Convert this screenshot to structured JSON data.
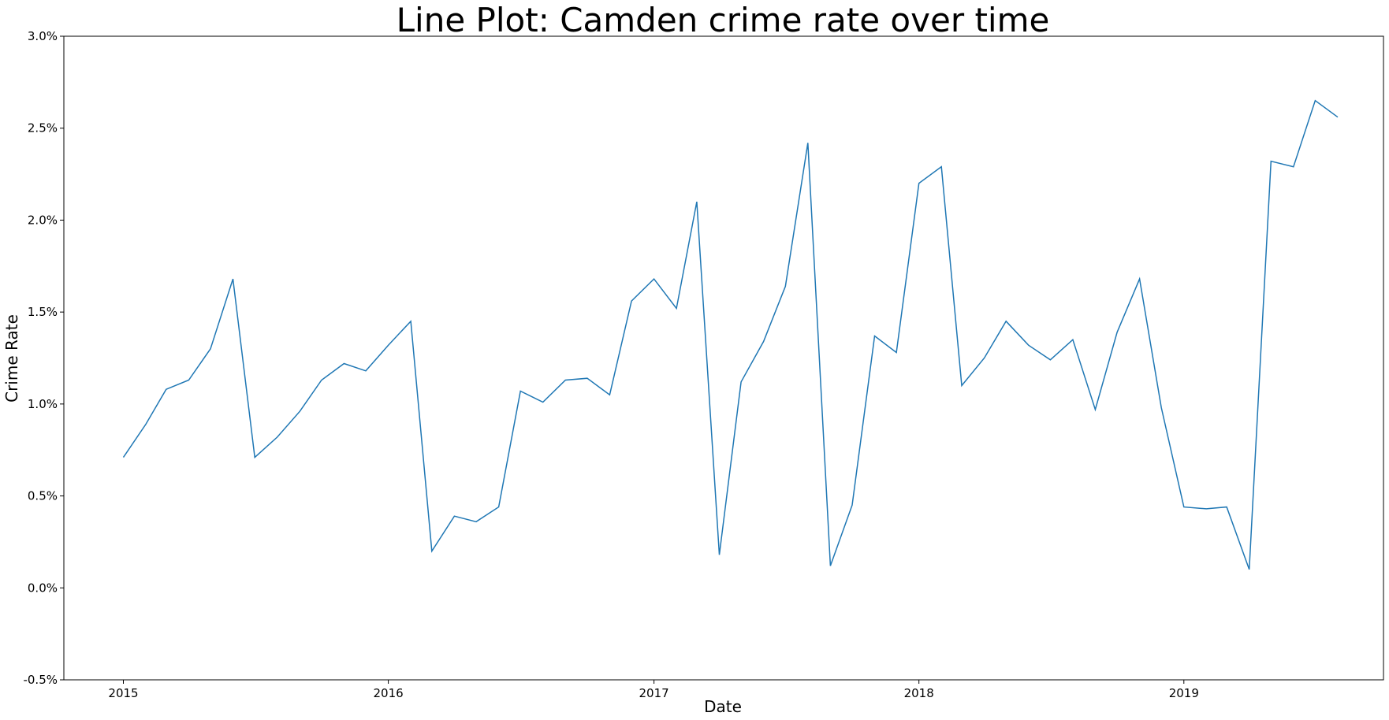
{
  "chart_data": {
    "type": "line",
    "title": "Line Plot: Camden crime rate over time",
    "xlabel": "Date",
    "ylabel": "Crime Rate",
    "x_axis_type": "date",
    "xlim": [
      "2014-10-11",
      "2019-10-03"
    ],
    "ylim": [
      -0.5,
      3.0
    ],
    "y_unit": "%",
    "x_ticks": [
      {
        "value": "2015-01-01",
        "label": "2015"
      },
      {
        "value": "2016-01-01",
        "label": "2016"
      },
      {
        "value": "2017-01-01",
        "label": "2017"
      },
      {
        "value": "2018-01-01",
        "label": "2018"
      },
      {
        "value": "2019-01-01",
        "label": "2019"
      }
    ],
    "y_ticks": [
      {
        "value": -0.5,
        "label": "-0.5%"
      },
      {
        "value": 0.0,
        "label": "0.0%"
      },
      {
        "value": 0.5,
        "label": "0.5%"
      },
      {
        "value": 1.0,
        "label": "1.0%"
      },
      {
        "value": 1.5,
        "label": "1.5%"
      },
      {
        "value": 2.0,
        "label": "2.0%"
      },
      {
        "value": 2.5,
        "label": "2.5%"
      },
      {
        "value": 3.0,
        "label": "3.0%"
      }
    ],
    "grid": false,
    "line_color": "#1f77b4",
    "series": [
      {
        "x": [
          "2015-01-01",
          "2015-02-01",
          "2015-03-01",
          "2015-04-01",
          "2015-05-01",
          "2015-06-01",
          "2015-07-01",
          "2015-08-01",
          "2015-09-01",
          "2015-10-01",
          "2015-11-01",
          "2015-12-01",
          "2016-01-01",
          "2016-02-01",
          "2016-03-01",
          "2016-04-01",
          "2016-05-01",
          "2016-06-01",
          "2016-07-01",
          "2016-08-01",
          "2016-09-01",
          "2016-10-01",
          "2016-11-01",
          "2016-12-01",
          "2017-01-01",
          "2017-02-01",
          "2017-03-01",
          "2017-04-01",
          "2017-05-01",
          "2017-06-01",
          "2017-07-01",
          "2017-08-01",
          "2017-09-01",
          "2017-10-01",
          "2017-11-01",
          "2017-12-01",
          "2018-01-01",
          "2018-02-01",
          "2018-03-01",
          "2018-04-01",
          "2018-05-01",
          "2018-06-01",
          "2018-07-01",
          "2018-08-01",
          "2018-09-01",
          "2018-10-01",
          "2018-11-01",
          "2018-12-01",
          "2019-01-01",
          "2019-02-01",
          "2019-03-01",
          "2019-04-01",
          "2019-05-01",
          "2019-06-01",
          "2019-07-01",
          "2019-08-01"
        ],
        "values": [
          0.71,
          0.89,
          1.08,
          1.13,
          1.3,
          1.68,
          0.71,
          0.82,
          0.96,
          1.13,
          1.22,
          1.18,
          1.32,
          1.45,
          0.2,
          0.39,
          0.36,
          0.44,
          1.07,
          1.01,
          1.13,
          1.14,
          1.05,
          1.56,
          1.68,
          1.52,
          2.1,
          0.18,
          1.12,
          1.34,
          1.64,
          2.42,
          0.12,
          0.45,
          1.37,
          1.28,
          2.2,
          2.29,
          1.1,
          1.25,
          1.45,
          1.32,
          1.24,
          1.35,
          0.97,
          1.39,
          1.68,
          0.98,
          0.44,
          0.43,
          0.44,
          0.1,
          2.32,
          2.29,
          2.65,
          2.56
        ]
      }
    ]
  }
}
